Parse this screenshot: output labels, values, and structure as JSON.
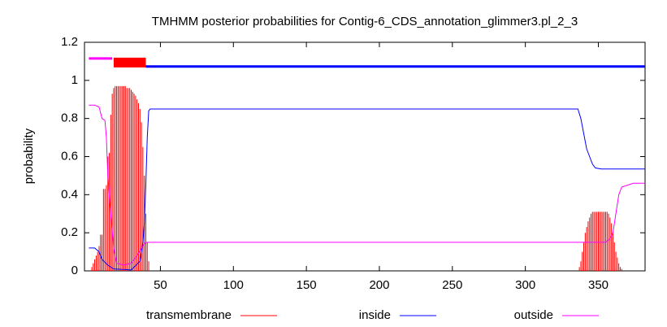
{
  "chart_data": {
    "type": "line",
    "title": "TMHMM posterior probabilities for Contig-6_CDS_annotation_glimmer3.pl_2_3",
    "ylabel": "probability",
    "xlim": [
      -2,
      382
    ],
    "ylim": [
      0,
      1.2
    ],
    "xticks": [
      50,
      100,
      150,
      200,
      250,
      300,
      350
    ],
    "yticks": [
      0,
      0.2,
      0.4,
      0.6,
      0.8,
      1,
      1.2
    ],
    "series": [
      {
        "name": "transmembrane",
        "color": "#ff0000",
        "style": "impulses",
        "x": [
          3,
          4,
          5,
          6,
          7,
          8,
          9,
          10,
          11,
          12,
          13,
          14,
          15,
          16,
          17,
          18,
          19,
          20,
          21,
          22,
          23,
          24,
          25,
          26,
          27,
          28,
          29,
          30,
          31,
          32,
          33,
          34,
          35,
          36,
          37,
          38,
          39,
          40,
          41,
          42,
          337,
          338,
          339,
          340,
          341,
          342,
          343,
          344,
          345,
          346,
          347,
          348,
          349,
          350,
          351,
          352,
          353,
          354,
          355,
          356,
          357,
          358,
          359,
          360,
          361,
          362,
          363,
          364,
          365,
          366
        ],
        "values": [
          0.02,
          0.04,
          0.06,
          0.08,
          0.1,
          0.13,
          0.19,
          0.19,
          0.43,
          0.43,
          0.45,
          0.6,
          0.62,
          0.82,
          0.93,
          0.96,
          0.97,
          0.97,
          0.97,
          0.97,
          0.97,
          0.97,
          0.97,
          0.97,
          0.96,
          0.96,
          0.96,
          0.95,
          0.94,
          0.93,
          0.92,
          0.9,
          0.88,
          0.85,
          0.78,
          0.65,
          0.5,
          0.3,
          0.15,
          0.05,
          0.02,
          0.05,
          0.1,
          0.15,
          0.2,
          0.23,
          0.26,
          0.28,
          0.3,
          0.31,
          0.31,
          0.31,
          0.31,
          0.31,
          0.31,
          0.31,
          0.31,
          0.31,
          0.31,
          0.31,
          0.3,
          0.28,
          0.25,
          0.2,
          0.15,
          0.1,
          0.07,
          0.04,
          0.02,
          0.01
        ]
      },
      {
        "name": "inside",
        "color": "#0000ff",
        "style": "line",
        "x": [
          1,
          5,
          8,
          10,
          14,
          18,
          30,
          36,
          38,
          39,
          40,
          41,
          42,
          43,
          336,
          338,
          340,
          342,
          344,
          346,
          348,
          352,
          382
        ],
        "values": [
          0.12,
          0.12,
          0.1,
          0.06,
          0.03,
          0.01,
          0.005,
          0.05,
          0.15,
          0.25,
          0.45,
          0.7,
          0.84,
          0.85,
          0.85,
          0.8,
          0.72,
          0.64,
          0.6,
          0.56,
          0.54,
          0.535,
          0.535
        ]
      },
      {
        "name": "outside",
        "color": "#ff00ff",
        "style": "line",
        "x": [
          1,
          5,
          8,
          10,
          12,
          13,
          14,
          16,
          18,
          20,
          25,
          30,
          34,
          37,
          40,
          42,
          355,
          358,
          360,
          362,
          364,
          366,
          370,
          374,
          382
        ],
        "values": [
          0.87,
          0.87,
          0.86,
          0.8,
          0.79,
          0.7,
          0.5,
          0.3,
          0.12,
          0.04,
          0.03,
          0.04,
          0.08,
          0.12,
          0.15,
          0.15,
          0.15,
          0.17,
          0.2,
          0.3,
          0.4,
          0.44,
          0.45,
          0.46,
          0.46
        ]
      }
    ],
    "topology": [
      {
        "start": 1,
        "end": 17,
        "level": 1.115,
        "color": "#ff00ff"
      },
      {
        "start": 18,
        "end": 40,
        "level": 1.094,
        "color": "#ff0000"
      },
      {
        "start": 40,
        "end": 382,
        "level": 1.073,
        "color": "#0000ff"
      }
    ]
  }
}
